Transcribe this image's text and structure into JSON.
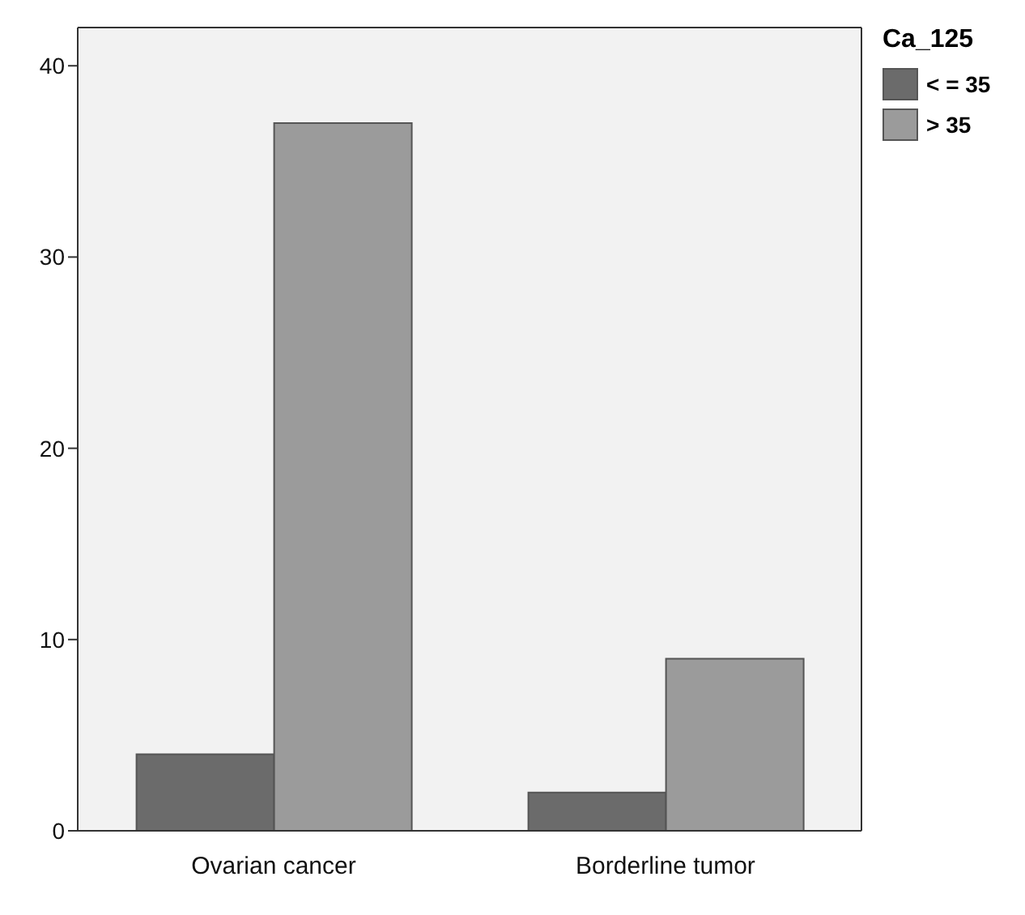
{
  "chart_data": {
    "type": "bar",
    "categories": [
      "Ovarian cancer",
      "Borderline tumor"
    ],
    "legend_title": "Ca_125",
    "series": [
      {
        "name": "< = 35",
        "color": "#6b6b6b",
        "values": [
          4,
          2
        ]
      },
      {
        "name": "> 35",
        "color": "#9b9b9b",
        "values": [
          37,
          9
        ]
      }
    ],
    "ylim": [
      0,
      42
    ],
    "yticks": [
      0,
      10,
      20,
      30,
      40
    ],
    "grid": false,
    "legend": "top right"
  }
}
